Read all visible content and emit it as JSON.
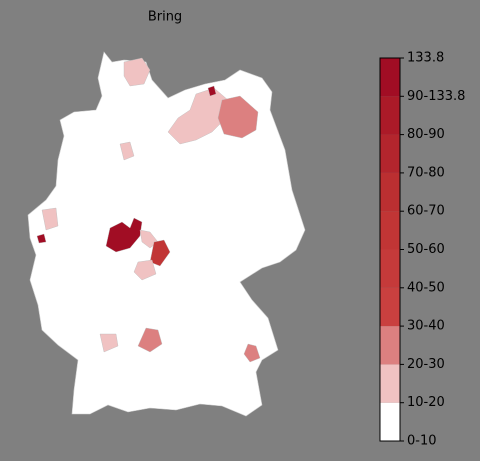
{
  "title": "Bring",
  "colorbar": {
    "ticks": [
      "0-10",
      "10-20",
      "20-30",
      "30-40",
      "40-50",
      "50-60",
      "60-70",
      "70-80",
      "80-90",
      "90-133.8",
      "133.8"
    ],
    "colors": [
      "#ffffff",
      "#f0c2c2",
      "#dc8080",
      "#c9403f",
      "#c53a3a",
      "#c13535",
      "#bb2f31",
      "#b3252d",
      "#ab1a28",
      "#a10d24"
    ]
  }
}
